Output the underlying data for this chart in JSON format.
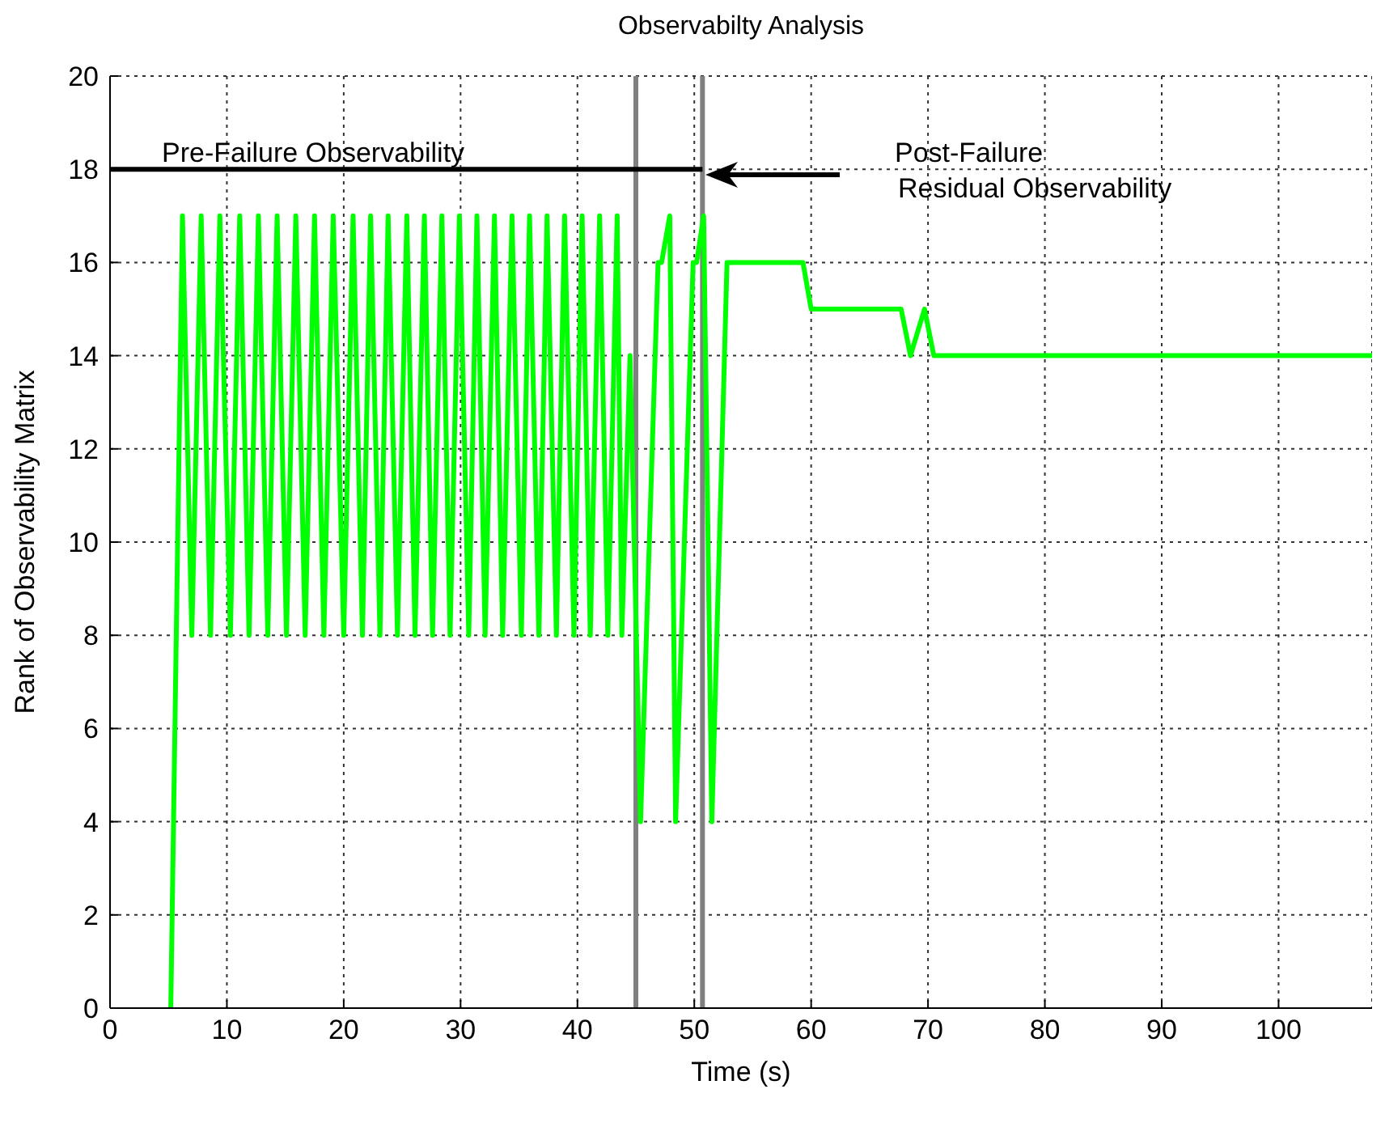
{
  "chart_data": {
    "type": "line",
    "title": "Observabilty Analysis",
    "xlabel": "Time (s)",
    "ylabel": "Rank of Observability Matrix",
    "xlim": [
      0,
      108
    ],
    "xticks": [
      0,
      10,
      20,
      30,
      40,
      50,
      60,
      70,
      80,
      90,
      100
    ],
    "ylim": [
      0,
      20
    ],
    "yticks": [
      0,
      2,
      4,
      6,
      8,
      10,
      12,
      14,
      16,
      18,
      20
    ],
    "grid": true,
    "marker": "none",
    "line_style": "solid",
    "series": [
      {
        "color": "#00ff00",
        "x": [
          5.2,
          6.2,
          7.0,
          7.8,
          8.6,
          9.4,
          10.3,
          11.1,
          11.9,
          12.7,
          13.5,
          14.3,
          15.1,
          15.9,
          16.7,
          17.5,
          18.3,
          19.1,
          20.0,
          20.8,
          21.6,
          22.3,
          23.1,
          23.8,
          24.6,
          25.4,
          26.1,
          26.9,
          27.6,
          28.4,
          29.1,
          29.9,
          30.7,
          31.4,
          32.1,
          32.9,
          33.6,
          34.4,
          35.2,
          35.9,
          36.7,
          37.4,
          38.2,
          38.9,
          39.7,
          40.4,
          41.1,
          41.9,
          42.6,
          43.4,
          43.8,
          44.5,
          45.4,
          46.9,
          47.2,
          47.9,
          48.4,
          49.9,
          50.2,
          50.8,
          51.5,
          52.8,
          59.3,
          60.0,
          67.7,
          68.5,
          69.7,
          70.5,
          108
        ],
        "values": [
          0,
          17,
          8,
          17,
          8,
          17,
          8,
          17,
          8,
          17,
          8,
          17,
          8,
          17,
          8,
          17,
          8,
          17,
          8,
          17,
          8,
          17,
          8,
          17,
          8,
          17,
          8,
          17,
          8,
          17,
          8,
          17,
          8,
          17,
          8,
          17,
          8,
          17,
          8,
          17,
          8,
          17,
          8,
          17,
          8,
          17,
          8,
          17,
          8,
          17,
          8,
          14,
          4,
          16,
          16,
          17,
          4,
          16,
          16,
          17,
          4,
          16,
          16,
          15,
          15,
          14,
          15,
          14,
          14
        ]
      },
      {
        "color": "#000000",
        "x": [
          0,
          50.7
        ],
        "values": [
          18,
          18
        ]
      }
    ],
    "ref_lines": [
      {
        "axis": "x",
        "value": 45,
        "color": "#808080"
      },
      {
        "axis": "x",
        "value": 50.7,
        "color": "#808080"
      }
    ],
    "annotations": [
      "Pre-Failure Observability",
      "Post-Failure\nResidual Observability"
    ]
  }
}
